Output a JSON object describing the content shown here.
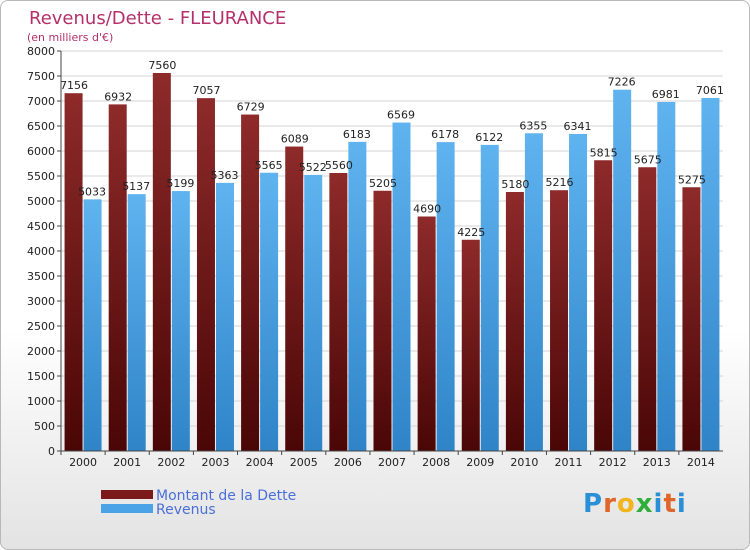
{
  "chart_data": {
    "type": "bar",
    "title": "Revenus/Dette - FLEURANCE",
    "subtitle": "(en milliers d'€)",
    "categories": [
      "2000",
      "2001",
      "2002",
      "2003",
      "2004",
      "2005",
      "2006",
      "2007",
      "2008",
      "2009",
      "2010",
      "2011",
      "2012",
      "2013",
      "2014"
    ],
    "series": [
      {
        "name": "Montant de la Dette",
        "color": "#7a1a1a",
        "values": [
          7156,
          6932,
          7560,
          7057,
          6729,
          6089,
          5560,
          5205,
          4690,
          4225,
          5180,
          5216,
          5815,
          5675,
          5275
        ],
        "labels": [
          "7156",
          "6932",
          "7560",
          "7057",
          "6729",
          "6089",
          "5560",
          "5205",
          "4690",
          "4225",
          "5180",
          "5216",
          "5815",
          "5675",
          "5275"
        ]
      },
      {
        "name": "Revenus",
        "color": "#4aa3e6",
        "values": [
          5033,
          5137,
          5199,
          5363,
          5565,
          5522,
          6183,
          6569,
          6178,
          6122,
          6355,
          6341,
          7226,
          6981,
          7061
        ],
        "labels": [
          "5033",
          "5137",
          "5199",
          "5363",
          "5565",
          "5522",
          "6183",
          "6569",
          "6178",
          "6122",
          "6355",
          "6341",
          "7226",
          "6981",
          "7061"
        ]
      }
    ],
    "ylim": [
      0,
      8000
    ],
    "yticks": [
      0,
      500,
      1000,
      1500,
      2000,
      2500,
      3000,
      3500,
      4000,
      4500,
      5000,
      5500,
      6000,
      6500,
      7000,
      7500,
      8000
    ],
    "grid": true,
    "legend_position": "bottom-left"
  },
  "logo": {
    "letters": [
      {
        "ch": "P",
        "cls": "p"
      },
      {
        "ch": "r",
        "cls": "r"
      },
      {
        "ch": "o",
        "cls": "o"
      },
      {
        "ch": "x",
        "cls": "x"
      },
      {
        "ch": "i",
        "cls": "i"
      },
      {
        "ch": "t",
        "cls": "t"
      },
      {
        "ch": "i",
        "cls": "i"
      }
    ]
  }
}
